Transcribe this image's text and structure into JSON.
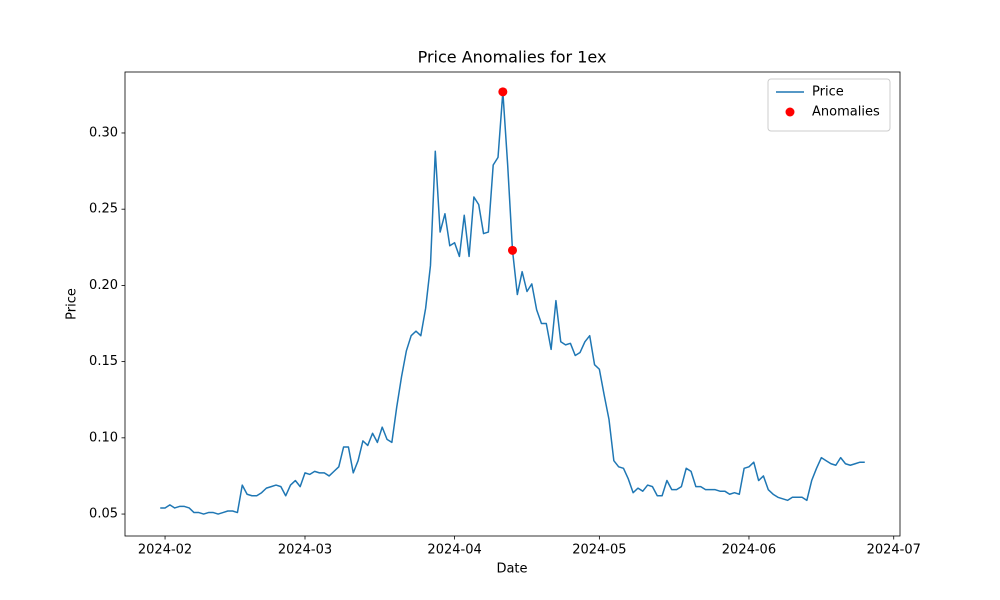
{
  "chart_data": {
    "type": "line",
    "title": "Price Anomalies for 1ex",
    "x_label": "Date",
    "y_label": "Price",
    "series": [
      {
        "name": "Price",
        "color": "#1f77b4",
        "type": "line",
        "x": [
          19753,
          19754,
          19755,
          19756,
          19757,
          19758,
          19759,
          19760,
          19761,
          19762,
          19763,
          19764,
          19765,
          19766,
          19767,
          19768,
          19769,
          19770,
          19771,
          19772,
          19773,
          19774,
          19775,
          19776,
          19777,
          19778,
          19779,
          19780,
          19781,
          19782,
          19783,
          19784,
          19785,
          19786,
          19787,
          19788,
          19789,
          19790,
          19791,
          19792,
          19793,
          19794,
          19795,
          19796,
          19797,
          19798,
          19799,
          19800,
          19801,
          19802,
          19803,
          19804,
          19805,
          19806,
          19807,
          19808,
          19809,
          19810,
          19811,
          19812,
          19813,
          19814,
          19815,
          19816,
          19817,
          19818,
          19819,
          19820,
          19821,
          19822,
          19823,
          19824,
          19825,
          19826,
          19827,
          19828,
          19829,
          19830,
          19831,
          19832,
          19833,
          19834,
          19835,
          19836,
          19837,
          19838,
          19839,
          19840,
          19841,
          19842,
          19843,
          19844,
          19845,
          19846,
          19847,
          19848,
          19849,
          19850,
          19851,
          19852,
          19853,
          19854,
          19855,
          19856,
          19857,
          19858,
          19859,
          19860,
          19861,
          19862,
          19863,
          19864,
          19865,
          19866,
          19867,
          19868,
          19869,
          19870,
          19871,
          19872,
          19873,
          19874,
          19875,
          19876,
          19877,
          19878,
          19879,
          19880,
          19881,
          19882,
          19883,
          19884,
          19885,
          19886,
          19887,
          19888,
          19889,
          19890,
          19891,
          19892,
          19893,
          19894,
          19895,
          19896,
          19897,
          19898,
          19899
        ],
        "values": [
          0.054,
          0.054,
          0.056,
          0.054,
          0.055,
          0.055,
          0.054,
          0.051,
          0.051,
          0.05,
          0.051,
          0.051,
          0.05,
          0.051,
          0.052,
          0.052,
          0.051,
          0.069,
          0.063,
          0.062,
          0.062,
          0.064,
          0.067,
          0.068,
          0.069,
          0.068,
          0.062,
          0.069,
          0.072,
          0.068,
          0.077,
          0.076,
          0.078,
          0.077,
          0.077,
          0.075,
          0.078,
          0.081,
          0.094,
          0.094,
          0.077,
          0.085,
          0.098,
          0.095,
          0.103,
          0.097,
          0.107,
          0.099,
          0.097,
          0.12,
          0.14,
          0.157,
          0.167,
          0.17,
          0.167,
          0.185,
          0.213,
          0.288,
          0.235,
          0.247,
          0.226,
          0.228,
          0.219,
          0.246,
          0.219,
          0.258,
          0.253,
          0.234,
          0.235,
          0.279,
          0.284,
          0.327,
          0.279,
          0.223,
          0.194,
          0.209,
          0.196,
          0.201,
          0.184,
          0.175,
          0.175,
          0.158,
          0.19,
          0.163,
          0.161,
          0.162,
          0.154,
          0.156,
          0.163,
          0.167,
          0.148,
          0.145,
          0.128,
          0.112,
          0.085,
          0.081,
          0.08,
          0.073,
          0.064,
          0.067,
          0.065,
          0.069,
          0.068,
          0.062,
          0.062,
          0.072,
          0.066,
          0.066,
          0.068,
          0.08,
          0.078,
          0.068,
          0.068,
          0.066,
          0.066,
          0.066,
          0.065,
          0.065,
          0.063,
          0.064,
          0.063,
          0.08,
          0.081,
          0.084,
          0.072,
          0.075,
          0.066,
          0.063,
          0.061,
          0.06,
          0.059,
          0.061,
          0.061,
          0.061,
          0.059,
          0.072,
          0.08,
          0.087,
          0.085,
          0.083,
          0.082,
          0.087,
          0.083,
          0.082,
          0.083,
          0.084,
          0.084
        ]
      },
      {
        "name": "Anomalies",
        "color": "#ff0000",
        "type": "scatter",
        "x": [
          19824,
          19826
        ],
        "values": [
          0.327,
          0.223
        ]
      }
    ],
    "xlim": [
      19745.7,
      19906.3
    ],
    "xticks": [
      {
        "value": 19754,
        "label": "2024-02"
      },
      {
        "value": 19783,
        "label": "2024-03"
      },
      {
        "value": 19814,
        "label": "2024-04"
      },
      {
        "value": 19844,
        "label": "2024-05"
      },
      {
        "value": 19875,
        "label": "2024-06"
      },
      {
        "value": 19905,
        "label": "2024-07"
      }
    ],
    "ylim": [
      0.0356,
      0.34
    ],
    "yticks": [
      0.05,
      {
        "value": 0.1,
        "label": "0.10"
      },
      0.15,
      {
        "value": 0.2,
        "label": "0.20"
      },
      0.25,
      {
        "value": 0.3,
        "label": "0.30"
      }
    ],
    "grid": false,
    "legend": "upper right"
  }
}
